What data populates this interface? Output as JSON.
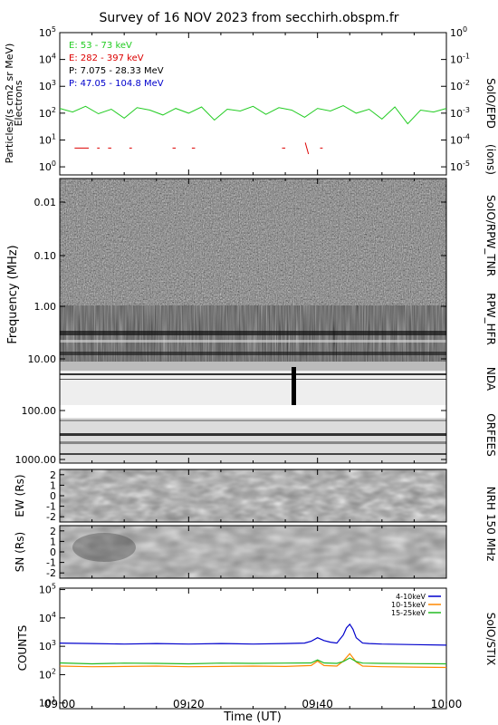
{
  "title": "Survey of 16 NOV 2023 from secchirh.obspm.fr",
  "colors": {
    "e_low": "#22cc22",
    "e_high": "#dd0000",
    "p_low": "#000000",
    "p_high": "#0000cc",
    "stix_4_10": "#0000cc",
    "stix_10_15": "#ff8800",
    "stix_15_25": "#22bb22"
  },
  "chart_data": [
    {
      "type": "line",
      "panel": "epd",
      "ylabel_left": "Particles/(s cm2 sr MeV)",
      "ylabel_left_2": "Electrons",
      "ylabel_right": "(ions)",
      "instrument_label": "SolO/EPD",
      "left_ticks": [
        "10^0",
        "10^1",
        "10^2",
        "10^3",
        "10^4",
        "10^5"
      ],
      "right_ticks": [
        "10^-5",
        "10^-4",
        "10^-3",
        "10^-2",
        "10^-1",
        "10^0"
      ],
      "left_yscale": "log",
      "left_ylim": [
        0.5,
        100000
      ],
      "legend": [
        {
          "label": "E: 53 - 73 keV",
          "color_key": "e_low"
        },
        {
          "label": "E: 282 - 397 keV",
          "color_key": "e_high"
        },
        {
          "label": "P: 7.075 - 28.33 MeV",
          "color_key": "p_low"
        },
        {
          "label": "P: 47.05 - 104.8 MeV",
          "color_key": "p_high"
        }
      ],
      "series": [
        {
          "color_key": "e_low",
          "x": [
            0,
            2,
            4,
            6,
            8,
            10,
            12,
            14,
            16,
            18,
            20,
            22,
            24,
            26,
            28,
            30,
            32,
            34,
            36,
            38,
            40,
            42,
            44,
            46,
            48,
            50,
            52,
            54,
            56,
            58,
            60
          ],
          "values": [
            150,
            110,
            180,
            95,
            140,
            65,
            160,
            130,
            85,
            150,
            100,
            170,
            55,
            140,
            120,
            180,
            90,
            160,
            130,
            70,
            150,
            120,
            190,
            100,
            140,
            60,
            170,
            40,
            130,
            110,
            150
          ]
        },
        {
          "color_key": "e_high",
          "segments": [
            [
              2.3,
              4.5,
              5
            ],
            [
              5.8,
              6.2,
              5
            ],
            [
              7.5,
              8,
              5
            ],
            [
              10.8,
              11.2,
              5
            ],
            [
              17.5,
              18,
              5
            ],
            [
              20.5,
              21,
              5
            ],
            [
              34.5,
              35,
              5
            ],
            [
              38.1,
              38.6,
              3
            ],
            [
              40.4,
              40.8,
              5
            ]
          ]
        }
      ]
    },
    {
      "type": "heatmap",
      "panel": "radio",
      "ylabel": "Frequency (MHz)",
      "tick_labels": [
        "0.01",
        "0.10",
        "1.00",
        "10.00",
        "100.00",
        "1000.00"
      ],
      "instrument_labels": [
        "SoIO/RPW_TNR",
        "RPW_HFR",
        "NDA",
        "ORFEES"
      ]
    },
    {
      "type": "heatmap",
      "panel": "nrh_ew",
      "ylabel": "EW (Rs)",
      "ylim": [
        -2.5,
        2.5
      ],
      "tick_labels": [
        "2",
        "1",
        "0",
        "-1",
        "-2"
      ]
    },
    {
      "type": "heatmap",
      "panel": "nrh_sn",
      "ylabel": "SN (Rs)",
      "ylim": [
        -2.5,
        2.5
      ],
      "tick_labels": [
        "2",
        "1",
        "0",
        "-1",
        "-2"
      ],
      "instrument_label": "NRH 150 MHz"
    },
    {
      "type": "line",
      "panel": "stix",
      "ylabel": "COUNTS",
      "instrument_label": "SolO/STIX",
      "yscale": "log",
      "ylim": [
        10,
        100000
      ],
      "tick_labels": [
        "10^1",
        "10^2",
        "10^3",
        "10^4",
        "10^5"
      ],
      "legend": [
        {
          "label": "4-10keV",
          "color_key": "stix_4_10"
        },
        {
          "label": "10-15keV",
          "color_key": "stix_10_15"
        },
        {
          "label": "15-25keV",
          "color_key": "stix_15_25"
        }
      ],
      "series": [
        {
          "color_key": "stix_4_10",
          "x": [
            0,
            5,
            10,
            15,
            20,
            25,
            30,
            35,
            38,
            39,
            40,
            41,
            42,
            43,
            44,
            44.5,
            45,
            45.5,
            46,
            47,
            48,
            50,
            55,
            60
          ],
          "values": [
            1300,
            1250,
            1200,
            1250,
            1200,
            1250,
            1200,
            1250,
            1300,
            1500,
            2000,
            1600,
            1400,
            1300,
            2500,
            4500,
            6000,
            4000,
            2000,
            1300,
            1250,
            1200,
            1150,
            1100
          ]
        },
        {
          "color_key": "stix_10_15",
          "x": [
            0,
            5,
            10,
            15,
            20,
            25,
            30,
            35,
            39,
            40,
            41,
            43,
            44,
            45,
            46,
            47,
            50,
            55,
            60
          ],
          "values": [
            200,
            190,
            195,
            200,
            190,
            195,
            200,
            195,
            210,
            300,
            210,
            200,
            300,
            550,
            280,
            200,
            190,
            185,
            180
          ]
        },
        {
          "color_key": "stix_15_25",
          "x": [
            0,
            5,
            10,
            15,
            20,
            25,
            30,
            35,
            39,
            40,
            41,
            43,
            44,
            45,
            46,
            47,
            50,
            55,
            60
          ],
          "values": [
            260,
            240,
            255,
            250,
            240,
            255,
            250,
            255,
            260,
            330,
            260,
            250,
            290,
            390,
            290,
            255,
            250,
            245,
            240
          ]
        }
      ]
    }
  ],
  "x_axis": {
    "label": "Time (UT)",
    "ticks": [
      {
        "minute": 0,
        "label": "09:00"
      },
      {
        "minute": 20,
        "label": "09:20"
      },
      {
        "minute": 40,
        "label": "09:40"
      },
      {
        "minute": 60,
        "label": "10:00"
      }
    ]
  }
}
